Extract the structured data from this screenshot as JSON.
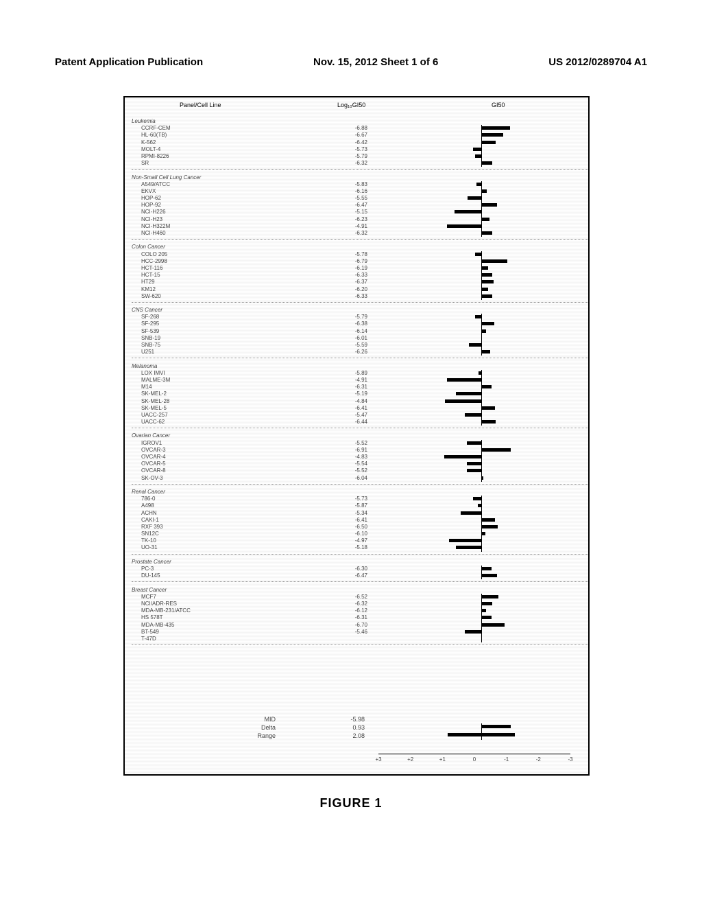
{
  "header": {
    "left": "Patent Application Publication",
    "center": "Nov. 15, 2012  Sheet 1 of 6",
    "right": "US 2012/0289704 A1"
  },
  "caption": "FIGURE 1",
  "chart": {
    "type": "bar",
    "col_headers": {
      "panel": "Panel/Cell Line",
      "val": "Log₁₀GI50",
      "bar": "GI50"
    },
    "center_value": -5.98,
    "axis_range": 3,
    "axis_ticks": [
      "+3",
      "+2",
      "+1",
      "0",
      "-1",
      "-2",
      "-3"
    ],
    "panels": [
      {
        "name": "Leukemia",
        "cells": [
          {
            "n": "CCRF-CEM",
            "v": -6.88
          },
          {
            "n": "HL-60(TB)",
            "v": -6.67
          },
          {
            "n": "K-562",
            "v": -6.42
          },
          {
            "n": "MOLT-4",
            "v": -5.73
          },
          {
            "n": "RPMI-8226",
            "v": -5.79
          },
          {
            "n": "SR",
            "v": -6.32
          }
        ]
      },
      {
        "name": "Non-Small Cell Lung Cancer",
        "cells": [
          {
            "n": "A549/ATCC",
            "v": -5.83
          },
          {
            "n": "EKVX",
            "v": -6.16
          },
          {
            "n": "HOP-62",
            "v": -5.55
          },
          {
            "n": "HOP-92",
            "v": -6.47
          },
          {
            "n": "NCI-H226",
            "v": -5.15
          },
          {
            "n": "NCI-H23",
            "v": -6.23
          },
          {
            "n": "NCI-H322M",
            "v": -4.91
          },
          {
            "n": "NCI-H460",
            "v": -6.32
          }
        ]
      },
      {
        "name": "Colon Cancer",
        "cells": [
          {
            "n": "COLO 205",
            "v": -5.78
          },
          {
            "n": "HCC-2998",
            "v": -6.79
          },
          {
            "n": "HCT-116",
            "v": -6.19
          },
          {
            "n": "HCT-15",
            "v": -6.33
          },
          {
            "n": "HT29",
            "v": -6.37
          },
          {
            "n": "KM12",
            "v": -6.2
          },
          {
            "n": "SW-620",
            "v": -6.33
          }
        ]
      },
      {
        "name": "CNS Cancer",
        "cells": [
          {
            "n": "SF-268",
            "v": -5.79
          },
          {
            "n": "SF-295",
            "v": -6.38
          },
          {
            "n": "SF-539",
            "v": -6.14
          },
          {
            "n": "SNB-19",
            "v": -6.01
          },
          {
            "n": "SNB-75",
            "v": -5.59
          },
          {
            "n": "U251",
            "v": -6.26
          }
        ]
      },
      {
        "name": "Melanoma",
        "cells": [
          {
            "n": "LOX IMVI",
            "v": -5.89
          },
          {
            "n": "MALME-3M",
            "v": -4.91
          },
          {
            "n": "M14",
            "v": -6.31
          },
          {
            "n": "SK-MEL-2",
            "v": -5.19
          },
          {
            "n": "SK-MEL-28",
            "v": -4.84
          },
          {
            "n": "SK-MEL-5",
            "v": -6.41
          },
          {
            "n": "UACC-257",
            "v": -5.47
          },
          {
            "n": "UACC-62",
            "v": -6.44
          }
        ]
      },
      {
        "name": "Ovarian Cancer",
        "cells": [
          {
            "n": "IGROV1",
            "v": -5.52
          },
          {
            "n": "OVCAR-3",
            "v": -6.91
          },
          {
            "n": "OVCAR-4",
            "v": -4.83
          },
          {
            "n": "OVCAR-5",
            "v": -5.54
          },
          {
            "n": "OVCAR-8",
            "v": -5.52
          },
          {
            "n": "SK-OV-3",
            "v": -6.04
          }
        ]
      },
      {
        "name": "Renal Cancer",
        "cells": [
          {
            "n": "786-0",
            "v": -5.73
          },
          {
            "n": "A498",
            "v": -5.87
          },
          {
            "n": "ACHN",
            "v": -5.34
          },
          {
            "n": "CAKI-1",
            "v": -6.41
          },
          {
            "n": "RXF 393",
            "v": -6.5
          },
          {
            "n": "SN12C",
            "v": -6.1
          },
          {
            "n": "TK-10",
            "v": -4.97
          },
          {
            "n": "UO-31",
            "v": -5.18
          }
        ]
      },
      {
        "name": "Prostate Cancer",
        "cells": [
          {
            "n": "PC-3",
            "v": -6.3
          },
          {
            "n": "DU-145",
            "v": -6.47
          }
        ]
      },
      {
        "name": "Breast Cancer",
        "cells": [
          {
            "n": "MCF7",
            "v": -6.52
          },
          {
            "n": "NCI/ADR-RES",
            "v": -6.32
          },
          {
            "n": "MDA-MB-231/ATCC",
            "v": -6.12
          },
          {
            "n": "HS 578T",
            "v": -6.31
          },
          {
            "n": "MDA-MB-435",
            "v": -6.7
          },
          {
            "n": "BT-549",
            "v": -5.46
          },
          {
            "n": "T-47D",
            "v": null
          }
        ]
      }
    ],
    "summary": [
      {
        "label": "MID",
        "val": "-5.98"
      },
      {
        "label": "Delta",
        "val": "0.93"
      },
      {
        "label": "Range",
        "val": "2.08"
      }
    ],
    "colors": {
      "bar": "#000000",
      "text": "#444444",
      "dotted": "#888888"
    }
  }
}
